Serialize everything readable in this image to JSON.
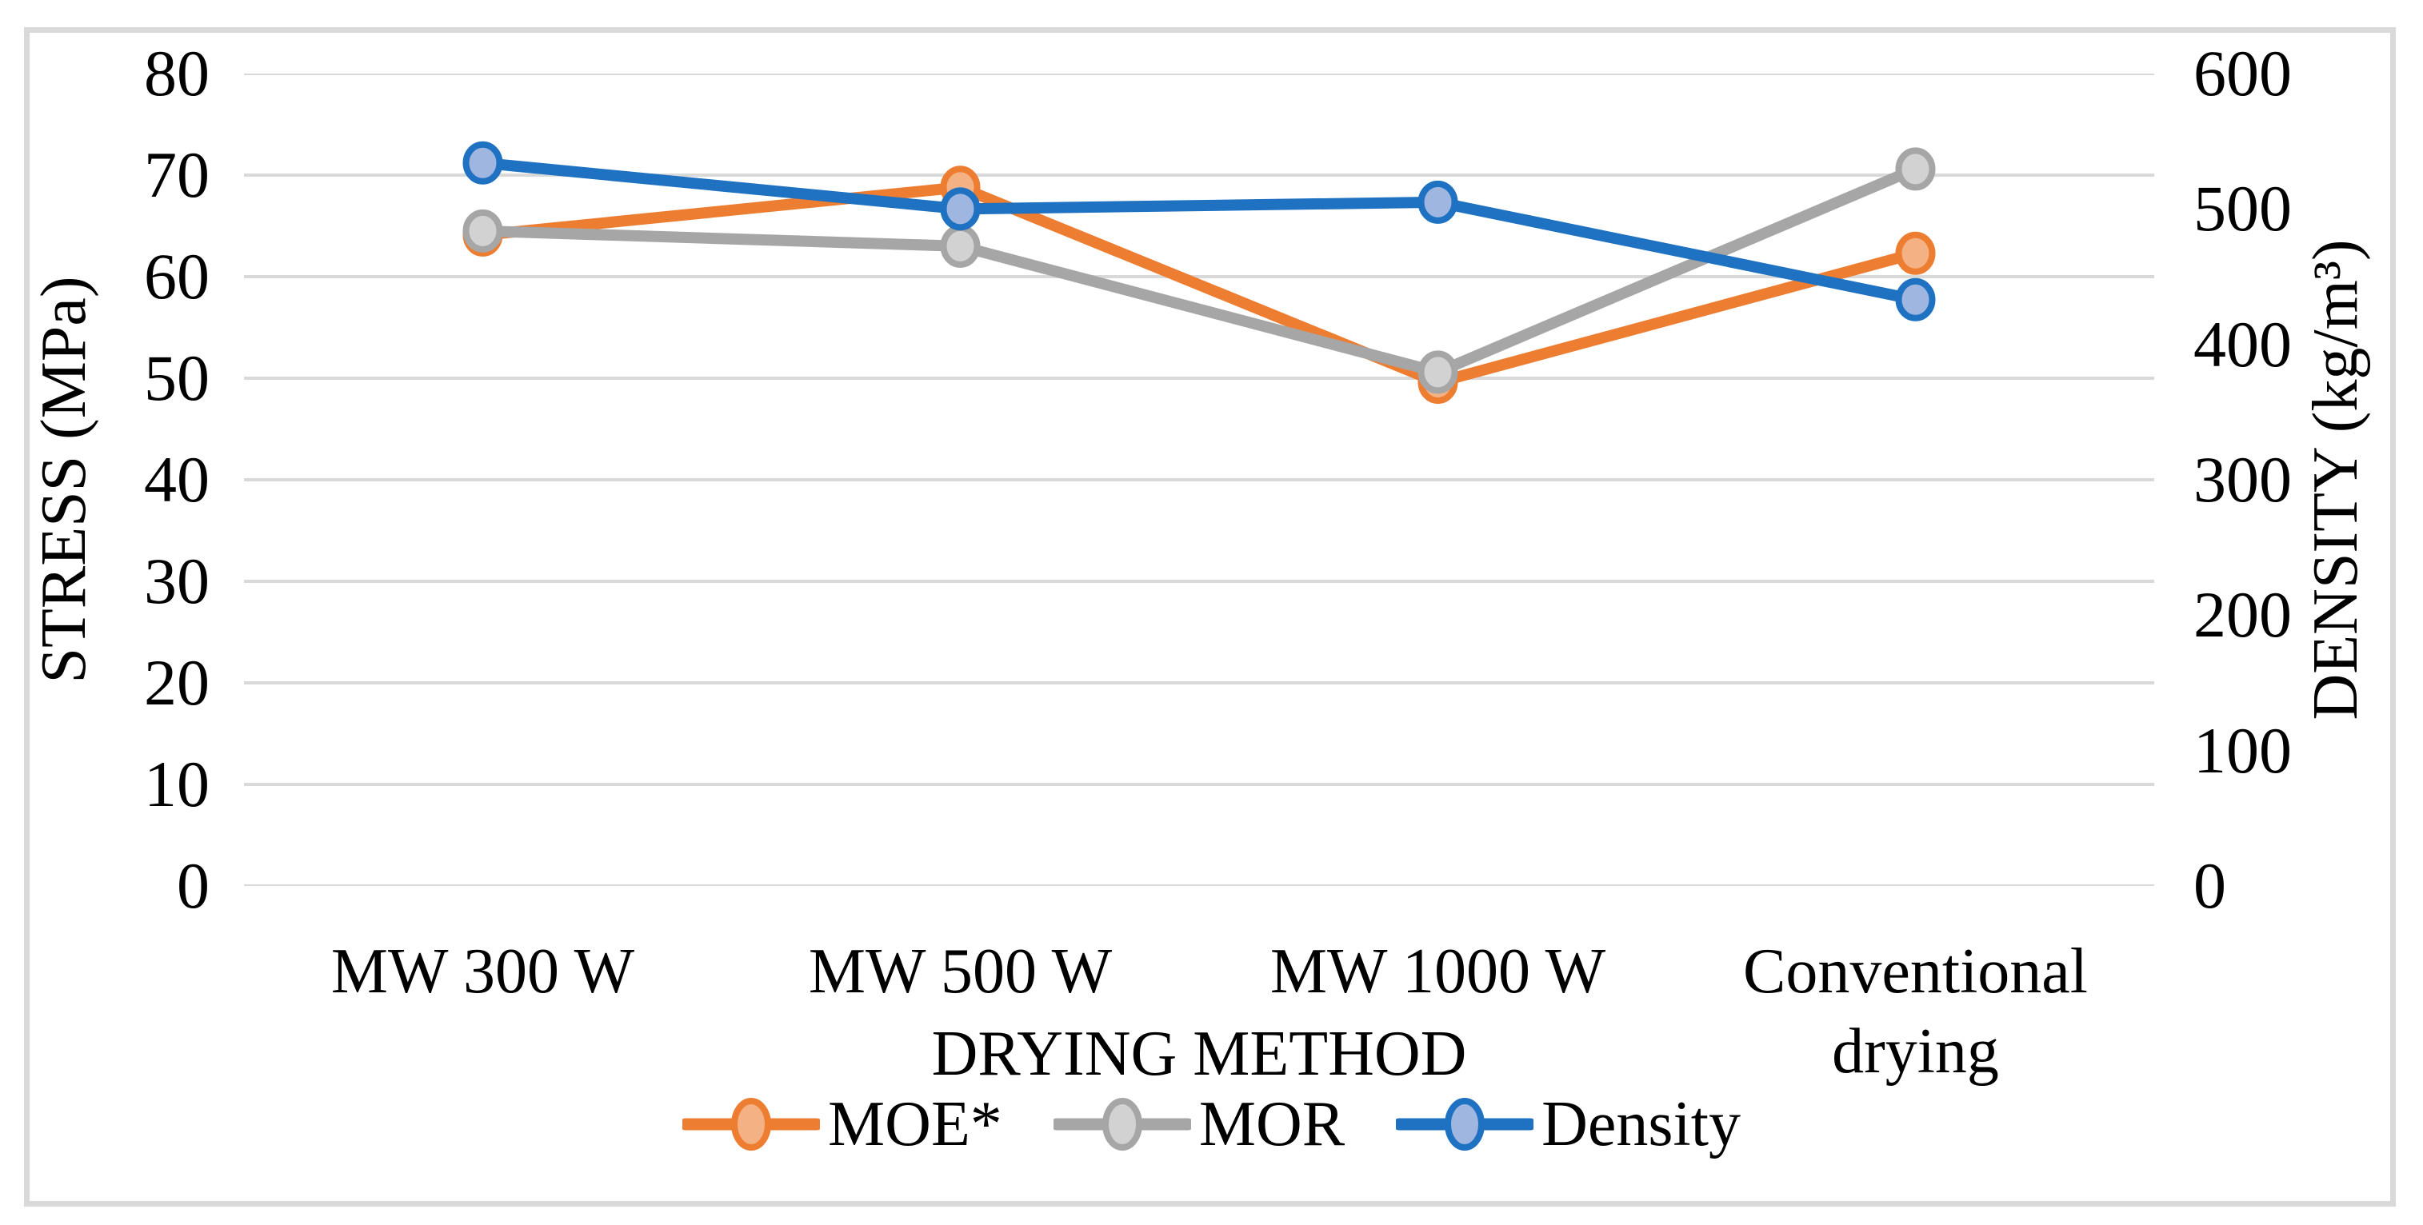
{
  "figure": {
    "left_axis": {
      "title": "STRESS (MPa)"
    },
    "right_axis": {
      "title": "DENSITY (kg/m³)"
    },
    "x_axis": {
      "title": "DRYING METHOD"
    }
  },
  "chart_data": {
    "type": "line",
    "categories": [
      "MW 300 W",
      "MW 500 W",
      "MW 1000 W",
      "Conventional drying"
    ],
    "series": [
      {
        "name": "MOE*",
        "axis": "left",
        "values": [
          64.1,
          68.8,
          49.6,
          62.3
        ],
        "line_color": "#ED7D31",
        "marker_fill": "#F4B183"
      },
      {
        "name": "MOR",
        "axis": "left",
        "values": [
          64.5,
          63.0,
          50.6,
          70.6
        ],
        "line_color": "#A6A6A6",
        "marker_fill": "#D2D2D2"
      },
      {
        "name": "Density",
        "axis": "right",
        "values": [
          534,
          500,
          505,
          433
        ],
        "line_color": "#1F72C1",
        "marker_fill": "#9FB6E0"
      }
    ],
    "left_ylabel": "STRESS (MPa)",
    "right_ylabel": "DENSITY (kg/m³)",
    "xlabel": "DRYING METHOD",
    "left_ylim": [
      0,
      80
    ],
    "right_ylim": [
      0,
      600
    ],
    "left_ticks": [
      80,
      70,
      60,
      50,
      40,
      30,
      20,
      10,
      0
    ],
    "right_ticks": [
      600,
      500,
      400,
      300,
      200,
      100,
      0
    ],
    "grid": "horizontal",
    "gridline_color": "#D9D9D9",
    "legend_position": "bottom-center",
    "legend_entries": [
      "MOE*",
      "MOR",
      "Density"
    ]
  }
}
